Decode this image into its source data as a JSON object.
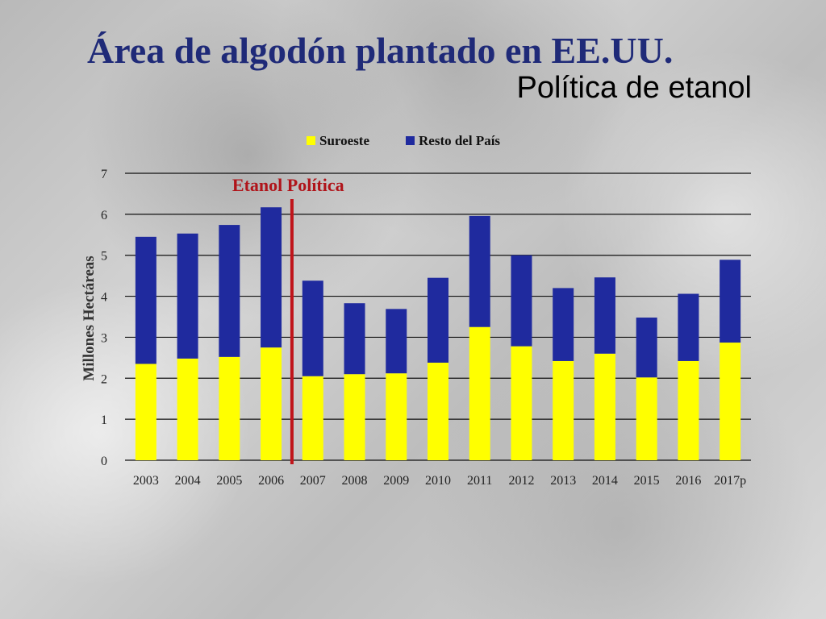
{
  "slide": {
    "title": "Área de algodón plantado en EE.UU.",
    "subtitle": "Política de etanol"
  },
  "colors": {
    "suroeste": "#ffff00",
    "resto": "#1f2a9e",
    "policy_line": "#c0141a",
    "title": "#1f2a78"
  },
  "chart_data": {
    "type": "bar",
    "stacked": true,
    "categories": [
      "2003",
      "2004",
      "2005",
      "2006",
      "2007",
      "2008",
      "2009",
      "2010",
      "2011",
      "2012",
      "2013",
      "2014",
      "2015",
      "2016",
      "2017p"
    ],
    "series": [
      {
        "name": "Suroeste",
        "values": [
          2.35,
          2.48,
          2.52,
          2.75,
          2.05,
          2.1,
          2.12,
          2.38,
          3.25,
          2.78,
          2.42,
          2.6,
          2.02,
          2.42,
          2.87
        ]
      },
      {
        "name": "Resto del País",
        "values": [
          3.1,
          3.05,
          3.22,
          3.42,
          2.33,
          1.73,
          1.57,
          2.07,
          2.71,
          2.22,
          1.78,
          1.86,
          1.46,
          1.64,
          2.02
        ]
      }
    ],
    "ylabel": "Millones Hectáreas",
    "xlabel": "",
    "ylim": [
      0,
      7
    ],
    "yticks": [
      0,
      1,
      2,
      3,
      4,
      5,
      6,
      7
    ],
    "grid": true,
    "legend_position": "top-center",
    "annotation": {
      "text": "Etanol Política",
      "between_categories": [
        "2006",
        "2007"
      ]
    }
  }
}
